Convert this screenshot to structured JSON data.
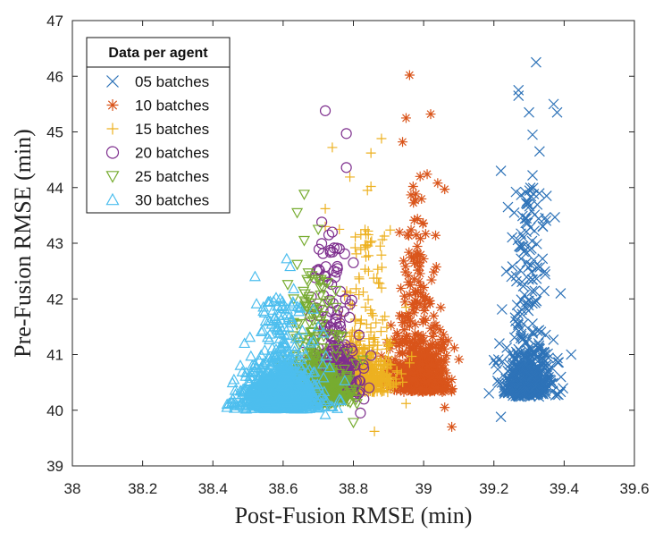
{
  "chart_data": {
    "type": "scatter",
    "xlabel": "Post-Fusion RMSE (min)",
    "ylabel": "Pre-Fusion RMSE (min)",
    "xlim": [
      38,
      39.6
    ],
    "ylim": [
      39,
      47
    ],
    "xticks": [
      "38",
      "38.2",
      "38.4",
      "38.6",
      "38.8",
      "39",
      "39.2",
      "39.4",
      "39.6"
    ],
    "yticks": [
      "39",
      "40",
      "41",
      "42",
      "43",
      "44",
      "45",
      "46",
      "47"
    ],
    "grid": false,
    "legend": {
      "title": "Data per agent",
      "placement": "top-left"
    },
    "series": [
      {
        "name": "05 batches",
        "marker": "x",
        "color": "#2E73B8",
        "count": 560,
        "seed": 11,
        "core": {
          "cx": 39.3,
          "sx": 0.035,
          "cy": 40.45,
          "sy": 0.35
        },
        "tail": {
          "frac": 0.35,
          "y": [
            40.3,
            44.0
          ],
          "sx": 0.04
        },
        "outliers": [
          [
            39.32,
            46.25
          ],
          [
            39.27,
            45.75
          ],
          [
            39.27,
            45.65
          ],
          [
            39.37,
            45.5
          ],
          [
            39.3,
            45.35
          ],
          [
            39.38,
            45.35
          ],
          [
            39.31,
            44.95
          ],
          [
            39.33,
            44.65
          ],
          [
            39.22,
            44.3
          ],
          [
            39.31,
            44.22
          ],
          [
            39.35,
            43.85
          ],
          [
            39.24,
            43.65
          ],
          [
            39.42,
            41.0
          ],
          [
            39.2,
            40.9
          ],
          [
            39.39,
            42.1
          ],
          [
            39.22,
            39.88
          ]
        ]
      },
      {
        "name": "10 batches",
        "marker": "star",
        "color": "#D9541A",
        "count": 650,
        "seed": 23,
        "core": {
          "cx": 38.99,
          "sx": 0.038,
          "cy": 40.55,
          "sy": 0.38
        },
        "tail": {
          "frac": 0.3,
          "y": [
            40.5,
            43.9
          ],
          "sx": 0.04
        },
        "outliers": [
          [
            38.96,
            46.02
          ],
          [
            39.02,
            45.32
          ],
          [
            38.94,
            44.82
          ],
          [
            38.95,
            45.25
          ],
          [
            38.99,
            44.2
          ],
          [
            39.01,
            44.24
          ],
          [
            39.04,
            44.08
          ],
          [
            39.06,
            43.97
          ],
          [
            38.97,
            44.02
          ],
          [
            39.07,
            41.25
          ],
          [
            39.08,
            39.7
          ],
          [
            39.06,
            40.05
          ]
        ]
      },
      {
        "name": "15 batches",
        "marker": "plus",
        "color": "#EDB120",
        "count": 560,
        "seed": 37,
        "core": {
          "cx": 38.83,
          "sx": 0.045,
          "cy": 40.55,
          "sy": 0.38
        },
        "tail": {
          "frac": 0.22,
          "y": [
            40.5,
            43.3
          ],
          "sx": 0.045
        },
        "outliers": [
          [
            38.74,
            44.72
          ],
          [
            38.88,
            44.88
          ],
          [
            38.85,
            44.62
          ],
          [
            38.79,
            44.19
          ],
          [
            38.84,
            43.95
          ],
          [
            38.85,
            44.02
          ],
          [
            38.72,
            43.62
          ],
          [
            38.76,
            43.25
          ],
          [
            38.72,
            43.3
          ],
          [
            38.95,
            41.85
          ],
          [
            38.96,
            40.85
          ],
          [
            38.95,
            40.12
          ],
          [
            38.86,
            39.62
          ]
        ]
      },
      {
        "name": "20 batches",
        "marker": "circle",
        "color": "#7E2F8E",
        "count": 380,
        "seed": 53,
        "core": {
          "cx": 38.74,
          "sx": 0.04,
          "cy": 40.5,
          "sy": 0.42
        },
        "tail": {
          "frac": 0.28,
          "y": [
            40.4,
            43.0
          ],
          "sx": 0.04
        },
        "outliers": [
          [
            38.72,
            45.38
          ],
          [
            38.78,
            44.97
          ],
          [
            38.78,
            44.36
          ],
          [
            38.71,
            43.38
          ],
          [
            38.74,
            43.2
          ],
          [
            38.73,
            43.15
          ],
          [
            38.76,
            42.9
          ],
          [
            38.8,
            42.65
          ],
          [
            38.72,
            42.4
          ],
          [
            38.83,
            40.2
          ],
          [
            38.82,
            39.95
          ],
          [
            38.79,
            40.55
          ]
        ]
      },
      {
        "name": "25 batches",
        "marker": "triangle-down",
        "color": "#77AC30",
        "count": 620,
        "seed": 71,
        "core": {
          "cx": 38.69,
          "sx": 0.045,
          "cy": 40.3,
          "sy": 0.32
        },
        "tail": {
          "frac": 0.2,
          "y": [
            40.3,
            42.5
          ],
          "sx": 0.045
        },
        "outliers": [
          [
            38.66,
            43.88
          ],
          [
            38.64,
            43.55
          ],
          [
            38.66,
            43.05
          ],
          [
            38.7,
            43.25
          ],
          [
            38.64,
            42.62
          ],
          [
            38.7,
            42.35
          ],
          [
            38.75,
            42.15
          ],
          [
            38.63,
            42.0
          ],
          [
            38.81,
            40.12
          ],
          [
            38.8,
            39.78
          ]
        ]
      },
      {
        "name": "30 batches",
        "marker": "triangle-up",
        "color": "#4DBEEE",
        "count": 1150,
        "seed": 89,
        "core": {
          "cx": 38.59,
          "sx": 0.05,
          "cy": 40.2,
          "sy": 0.3
        },
        "tail": {
          "frac": 0.18,
          "y": [
            40.2,
            42.0
          ],
          "sx": 0.05
        },
        "outliers": [
          [
            38.52,
            42.4
          ],
          [
            38.61,
            42.72
          ],
          [
            38.62,
            42.58
          ],
          [
            38.63,
            42.18
          ],
          [
            38.58,
            42.02
          ],
          [
            38.44,
            40.05
          ],
          [
            38.46,
            40.55
          ],
          [
            38.49,
            41.2
          ],
          [
            38.55,
            41.6
          ],
          [
            38.7,
            41.5
          ],
          [
            38.72,
            39.92
          ]
        ]
      }
    ]
  }
}
